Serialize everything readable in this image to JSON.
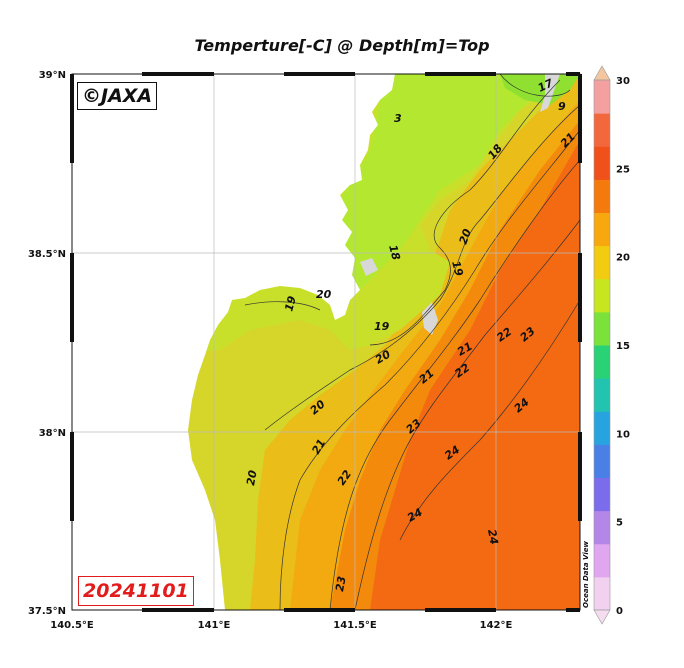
{
  "title": "Temperture[-C] @ Depth[m]=Top",
  "copyright": "©JAXA",
  "date": "20241101",
  "watermark": "Ocean Data View",
  "lon_ticks": [
    "140.5°E",
    "141°E",
    "141.5°E",
    "142°E"
  ],
  "lat_ticks": [
    "39°N",
    "38.5°N",
    "38°N",
    "37.5°N"
  ],
  "colorbar": {
    "min": 0,
    "max": 30,
    "tick_labels": [
      "0",
      "5",
      "10",
      "15",
      "20",
      "25",
      "30"
    ],
    "stops": [
      "#f2d0f0",
      "#e0a6ef",
      "#b386e8",
      "#7a6cea",
      "#4a7fe6",
      "#27a4e0",
      "#22c4b0",
      "#2ad276",
      "#7ae23a",
      "#c8e61f",
      "#f2cc10",
      "#f6a80e",
      "#f57a0e",
      "#f0501a",
      "#f2683c",
      "#f4a0a0"
    ]
  },
  "colors": {
    "land": "#ffffff",
    "isle": "#d8d8d8",
    "t17": "#b4e830",
    "t19": "#c8e02a",
    "t20": "#d6d62a",
    "t21": "#eabd18",
    "t22": "#f2aa10",
    "t23": "#f48a0c",
    "t24": "#f46a12"
  },
  "contour_labels": [
    "17",
    "9",
    "3",
    "21",
    "18",
    "20",
    "18",
    "19",
    "19",
    "19",
    "20",
    "20",
    "21",
    "22",
    "23",
    "21",
    "22",
    "21",
    "20",
    "23",
    "24",
    "21",
    "22",
    "24",
    "20",
    "24",
    "24",
    "23"
  ]
}
